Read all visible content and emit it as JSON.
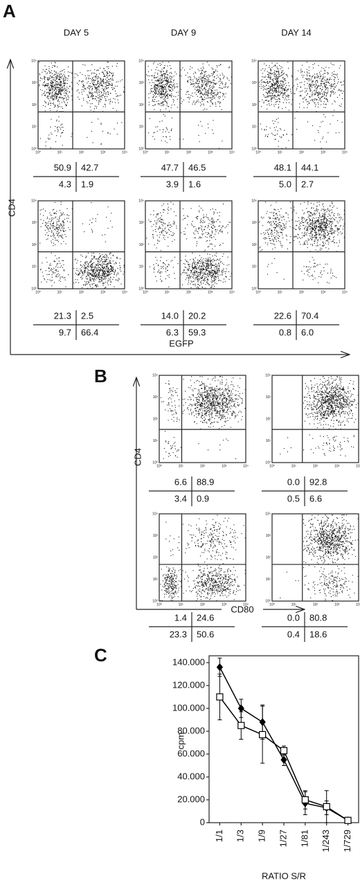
{
  "panel_a": {
    "label": "A",
    "columns": [
      "DAY 5",
      "DAY 9",
      "DAY 14"
    ],
    "y_axis_label": "CD4",
    "x_axis_label": "EGFP",
    "plots": [
      [
        [
          "50.9",
          "42.7",
          "4.3",
          "1.9"
        ],
        [
          "47.7",
          "46.5",
          "3.9",
          "1.6"
        ],
        [
          "48.1",
          "44.1",
          "5.0",
          "2.7"
        ]
      ],
      [
        [
          "21.3",
          "2.5",
          "9.7",
          "66.4"
        ],
        [
          "14.0",
          "20.2",
          "6.3",
          "59.3"
        ],
        [
          "22.6",
          "70.4",
          "0.8",
          "6.0"
        ]
      ]
    ]
  },
  "panel_b": {
    "label": "B",
    "y_axis_label": "CD4",
    "x_axis_label": "CD80",
    "plots": [
      [
        [
          "6.6",
          "88.9",
          "3.4",
          "0.9"
        ],
        [
          "0.0",
          "92.8",
          "0.5",
          "6.6"
        ]
      ],
      [
        [
          "1.4",
          "24.6",
          "23.3",
          "50.6"
        ],
        [
          "0.0",
          "80.8",
          "0.4",
          "18.6"
        ]
      ]
    ]
  },
  "log_tick_labels": [
    "10⁰",
    "10¹",
    "10²",
    "10³",
    "10⁴"
  ],
  "chart_data": {
    "type": "line",
    "panel_label": "C",
    "y_label": "cpm",
    "x_label": "RATIO S/R",
    "categories": [
      "1/1",
      "1/3",
      "1/9",
      "1/27",
      "1/81",
      "1/243",
      "1/729"
    ],
    "series": [
      {
        "color": "#000000",
        "marker": "diamond",
        "filled": true,
        "values": [
          136000,
          100000,
          88000,
          55000,
          17000,
          13000,
          2000
        ],
        "errors": [
          8000,
          8000,
          15000,
          5000,
          10000,
          6000,
          1500
        ]
      },
      {
        "color": "#000000",
        "marker": "square",
        "filled": false,
        "values": [
          110000,
          85000,
          77000,
          63000,
          20000,
          14000,
          2000
        ],
        "errors": [
          20000,
          12000,
          25000,
          4000,
          8000,
          14000,
          2000
        ]
      }
    ],
    "ylim": [
      0,
      146000
    ],
    "yticks": [
      0,
      {
        "value": 20000,
        "label": "20.000"
      },
      {
        "value": 40000,
        "label": "40.000"
      },
      {
        "value": 60000,
        "label": "60.000"
      },
      {
        "value": 80000,
        "label": "80.000"
      },
      {
        "value": 100000,
        "label": "100.000"
      },
      {
        "value": 120000,
        "label": "120.000"
      },
      {
        "value": 140000,
        "label": "140.000"
      }
    ],
    "grid": false
  }
}
